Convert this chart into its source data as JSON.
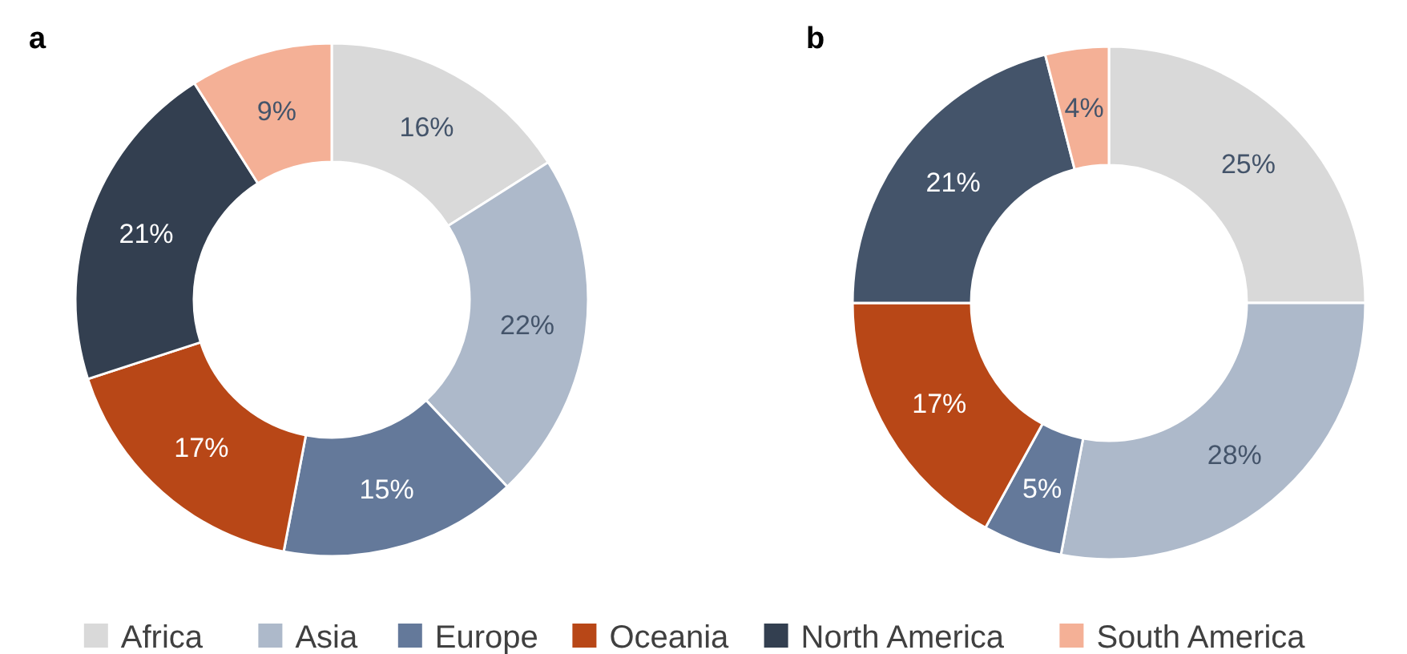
{
  "chart_data": [
    {
      "type": "donut",
      "title": "a",
      "categories": [
        "Africa",
        "Asia",
        "Europe",
        "Oceania",
        "North America",
        "South America"
      ],
      "values": [
        16,
        22,
        15,
        17,
        21,
        9
      ],
      "colors": [
        "#d9d9d9",
        "#adb9ca",
        "#64799a",
        "#b84717",
        "#333f50",
        "#f4b096"
      ],
      "value_labels": [
        "16%",
        "22%",
        "15%",
        "17%",
        "21%",
        "9%"
      ],
      "legend": "bottom"
    },
    {
      "type": "donut",
      "title": "b",
      "categories": [
        null,
        null,
        null,
        null,
        null,
        null
      ],
      "values": [
        25,
        28,
        5,
        17,
        21,
        4
      ],
      "colors": [
        "#d9d9d9",
        "#adb9ca",
        "#64799a",
        "#b84717",
        "#44546a",
        "#f4b096"
      ],
      "value_labels": [
        "25%",
        "28%",
        "5%",
        "17%",
        "21%",
        "4%"
      ]
    }
  ]
}
